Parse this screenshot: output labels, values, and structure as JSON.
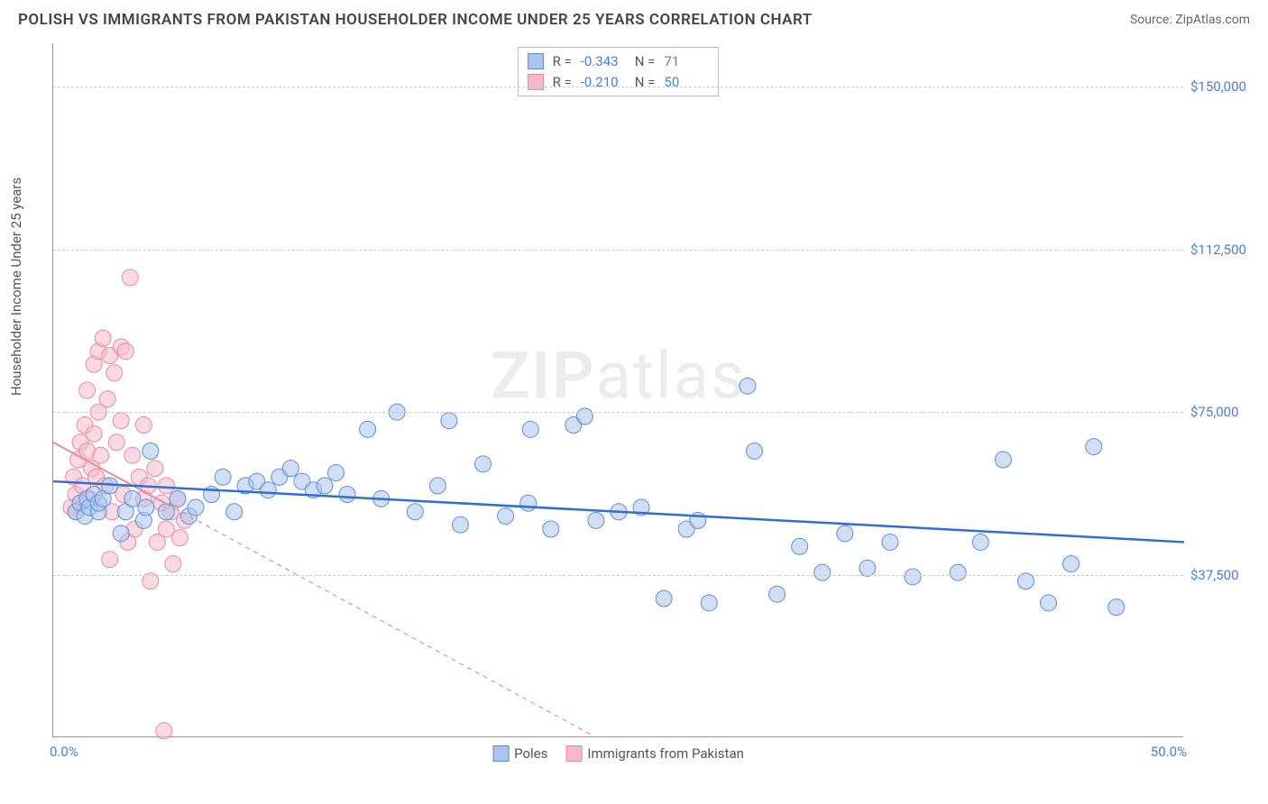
{
  "title": "POLISH VS IMMIGRANTS FROM PAKISTAN HOUSEHOLDER INCOME UNDER 25 YEARS CORRELATION CHART",
  "source_label": "Source: ",
  "source_name": "ZipAtlas.com",
  "watermark_zip": "ZIP",
  "watermark_atlas": "atlas",
  "chart": {
    "type": "scatter",
    "background_color": "#ffffff",
    "grid_color": "#cccccc",
    "grid_dash": "4,4",
    "axis_color": "#999999",
    "xlim": [
      0,
      50
    ],
    "ylim": [
      0,
      160000
    ],
    "x_tick_min_label": "0.0%",
    "x_tick_max_label": "50.0%",
    "y_ticks": [
      37500,
      75000,
      112500,
      150000
    ],
    "y_tick_labels": [
      "$37,500",
      "$75,000",
      "$112,500",
      "$150,000"
    ],
    "y_axis_title": "Householder Income Under 25 years",
    "label_color": "#4a7fd8",
    "label_fontsize": 15,
    "title_fontsize": 17,
    "marker_radius": 9,
    "marker_opacity": 0.55,
    "series": [
      {
        "name": "Poles",
        "color_fill": "#a9c5ee",
        "color_stroke": "#5d8fd6",
        "swatch_fill": "#a9c5ee",
        "swatch_border": "#5d8fd6",
        "R": "-0.343",
        "N": "71",
        "trend": {
          "x1": 0,
          "y1": 59000,
          "x2": 50,
          "y2": 45000,
          "color": "#2f6fd0",
          "width": 2.5,
          "dash": "none"
        },
        "points": [
          [
            1.0,
            52000
          ],
          [
            1.2,
            54000
          ],
          [
            1.4,
            51000
          ],
          [
            1.5,
            55000
          ],
          [
            1.6,
            53000
          ],
          [
            1.8,
            56000
          ],
          [
            2.0,
            52000
          ],
          [
            2.0,
            54000
          ],
          [
            2.2,
            55000
          ],
          [
            2.5,
            58000
          ],
          [
            3.0,
            47000
          ],
          [
            3.2,
            52000
          ],
          [
            3.5,
            55000
          ],
          [
            4.0,
            50000
          ],
          [
            4.1,
            53000
          ],
          [
            4.3,
            66000
          ],
          [
            5.0,
            52000
          ],
          [
            5.5,
            55000
          ],
          [
            6.0,
            51000
          ],
          [
            6.3,
            53000
          ],
          [
            7.0,
            56000
          ],
          [
            7.5,
            60000
          ],
          [
            8.0,
            52000
          ],
          [
            8.5,
            58000
          ],
          [
            9.0,
            59000
          ],
          [
            9.5,
            57000
          ],
          [
            10.0,
            60000
          ],
          [
            10.5,
            62000
          ],
          [
            11.0,
            59000
          ],
          [
            11.5,
            57000
          ],
          [
            12.0,
            58000
          ],
          [
            12.5,
            61000
          ],
          [
            13.0,
            56000
          ],
          [
            13.9,
            71000
          ],
          [
            14.5,
            55000
          ],
          [
            15.2,
            75000
          ],
          [
            16.0,
            52000
          ],
          [
            17.0,
            58000
          ],
          [
            17.5,
            73000
          ],
          [
            18.0,
            49000
          ],
          [
            19.0,
            63000
          ],
          [
            20.0,
            51000
          ],
          [
            21.0,
            54000
          ],
          [
            21.1,
            71000
          ],
          [
            22.0,
            48000
          ],
          [
            23.0,
            72000
          ],
          [
            23.5,
            74000
          ],
          [
            24.0,
            50000
          ],
          [
            25.0,
            52000
          ],
          [
            26.0,
            53000
          ],
          [
            27.0,
            32000
          ],
          [
            28.0,
            48000
          ],
          [
            28.5,
            50000
          ],
          [
            29.0,
            31000
          ],
          [
            30.7,
            81000
          ],
          [
            31.0,
            66000
          ],
          [
            32.0,
            33000
          ],
          [
            33.0,
            44000
          ],
          [
            34.0,
            38000
          ],
          [
            35.0,
            47000
          ],
          [
            36.0,
            39000
          ],
          [
            37.0,
            45000
          ],
          [
            38.0,
            37000
          ],
          [
            40.0,
            38000
          ],
          [
            41.0,
            45000
          ],
          [
            42.0,
            64000
          ],
          [
            43.0,
            36000
          ],
          [
            44.0,
            31000
          ],
          [
            45.0,
            40000
          ],
          [
            46.0,
            67000
          ],
          [
            47.0,
            30000
          ]
        ]
      },
      {
        "name": "Immigrants from Pakistan",
        "color_fill": "#f5b9c8",
        "color_stroke": "#e88aa3",
        "swatch_fill": "#f5b9c8",
        "swatch_border": "#e88aa3",
        "R": "-0.210",
        "N": "50",
        "trend": {
          "x1": 0,
          "y1": 68000,
          "x2": 24,
          "y2": 0,
          "color": "#e88aa3",
          "width": 1.2,
          "dash": "5,5",
          "solid_until_x": 5
        },
        "points": [
          [
            0.8,
            53000
          ],
          [
            0.9,
            60000
          ],
          [
            1.0,
            52000
          ],
          [
            1.0,
            56000
          ],
          [
            1.1,
            64000
          ],
          [
            1.2,
            68000
          ],
          [
            1.3,
            58000
          ],
          [
            1.4,
            72000
          ],
          [
            1.5,
            66000
          ],
          [
            1.5,
            80000
          ],
          [
            1.6,
            55000
          ],
          [
            1.7,
            62000
          ],
          [
            1.8,
            86000
          ],
          [
            1.8,
            70000
          ],
          [
            1.9,
            60000
          ],
          [
            2.0,
            89000
          ],
          [
            2.0,
            75000
          ],
          [
            2.1,
            65000
          ],
          [
            2.2,
            92000
          ],
          [
            2.3,
            58000
          ],
          [
            2.4,
            78000
          ],
          [
            2.5,
            88000
          ],
          [
            2.6,
            52000
          ],
          [
            2.7,
            84000
          ],
          [
            2.8,
            68000
          ],
          [
            3.0,
            90000
          ],
          [
            3.0,
            73000
          ],
          [
            3.1,
            56000
          ],
          [
            3.2,
            89000
          ],
          [
            3.4,
            106000
          ],
          [
            3.5,
            65000
          ],
          [
            3.6,
            48000
          ],
          [
            3.8,
            60000
          ],
          [
            4.0,
            55000
          ],
          [
            4.0,
            72000
          ],
          [
            4.2,
            58000
          ],
          [
            4.3,
            36000
          ],
          [
            4.5,
            62000
          ],
          [
            4.6,
            45000
          ],
          [
            4.8,
            54000
          ],
          [
            5.0,
            48000
          ],
          [
            5.0,
            58000
          ],
          [
            5.2,
            52000
          ],
          [
            5.3,
            40000
          ],
          [
            5.5,
            55000
          ],
          [
            5.6,
            46000
          ],
          [
            5.8,
            50000
          ],
          [
            4.9,
            1500
          ],
          [
            2.5,
            41000
          ],
          [
            3.3,
            45000
          ]
        ]
      }
    ],
    "legend": {
      "series1_label": "Poles",
      "series2_label": "Immigrants from Pakistan"
    },
    "stats_labels": {
      "R": "R =",
      "N": "N ="
    }
  }
}
